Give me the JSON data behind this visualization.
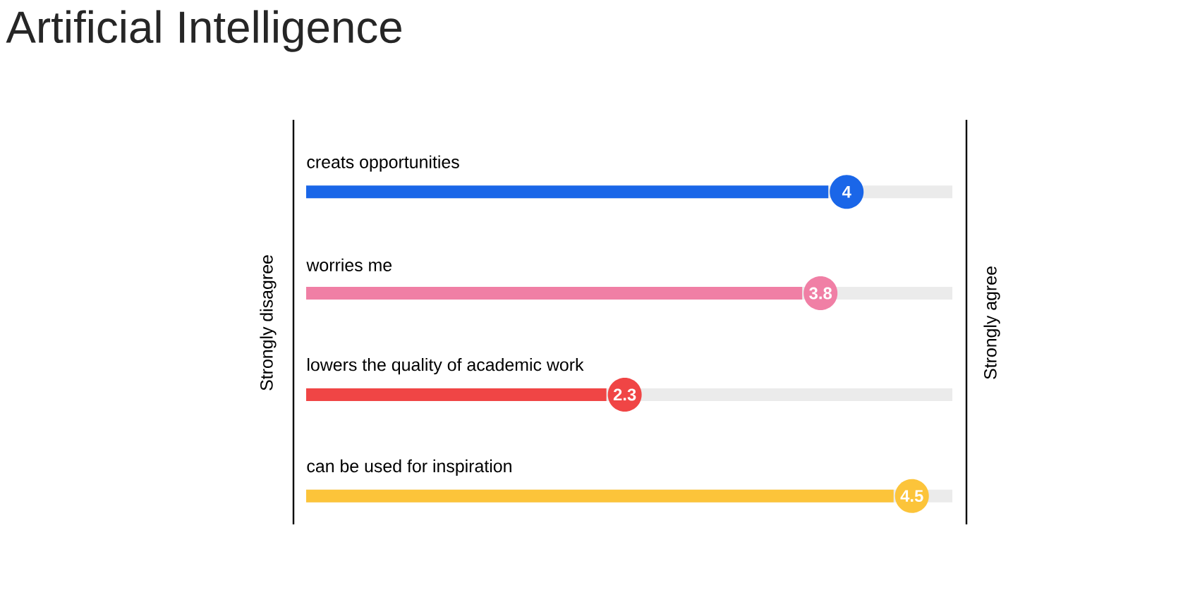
{
  "chart_data": {
    "type": "bar",
    "orientation": "horizontal",
    "title": "Artificial Intelligence",
    "categories": [
      "creats opportunities",
      "worries me",
      "lowers the quality of academic work",
      "can be used for inspiration"
    ],
    "values": [
      4,
      3.8,
      2.3,
      4.5
    ],
    "colors": [
      "#1a66e8",
      "#f07fa5",
      "#f04545",
      "#fcc43a"
    ],
    "data_labels": true,
    "annotations": [
      "Strongly disagree",
      "Strongly agree"
    ]
  }
}
